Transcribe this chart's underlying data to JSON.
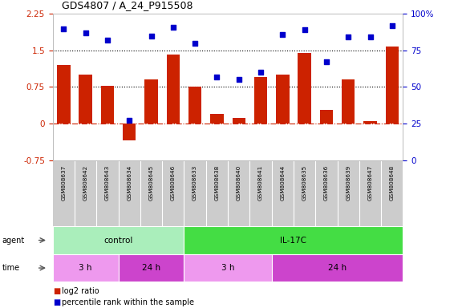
{
  "title": "GDS4807 / A_24_P915508",
  "samples": [
    "GSM808637",
    "GSM808642",
    "GSM808643",
    "GSM808634",
    "GSM808645",
    "GSM808646",
    "GSM808633",
    "GSM808638",
    "GSM808640",
    "GSM808641",
    "GSM808644",
    "GSM808635",
    "GSM808636",
    "GSM808639",
    "GSM808647",
    "GSM808648"
  ],
  "log2_ratio": [
    1.2,
    1.0,
    0.78,
    -0.35,
    0.9,
    1.42,
    0.75,
    0.2,
    0.12,
    0.95,
    1.0,
    1.45,
    0.28,
    0.9,
    0.05,
    1.58
  ],
  "percentile": [
    90,
    87,
    82,
    27,
    85,
    91,
    80,
    57,
    55,
    60,
    86,
    89,
    67,
    84,
    84,
    92
  ],
  "bar_color": "#cc2200",
  "dot_color": "#0000cc",
  "ylim_left": [
    -0.75,
    2.25
  ],
  "ylim_right": [
    0,
    100
  ],
  "hline_values": [
    0.0,
    0.75,
    1.5
  ],
  "hline_styles": [
    "-.",
    ":",
    ":"
  ],
  "hline_colors": [
    "#cc2200",
    "black",
    "black"
  ],
  "agent_groups": [
    {
      "label": "control",
      "start": 0,
      "end": 6,
      "color": "#aaeebb"
    },
    {
      "label": "IL-17C",
      "start": 6,
      "end": 16,
      "color": "#44dd44"
    }
  ],
  "time_groups": [
    {
      "label": "3 h",
      "start": 0,
      "end": 3,
      "color": "#ee99ee"
    },
    {
      "label": "24 h",
      "start": 3,
      "end": 6,
      "color": "#cc44cc"
    },
    {
      "label": "3 h",
      "start": 6,
      "end": 10,
      "color": "#ee99ee"
    },
    {
      "label": "24 h",
      "start": 10,
      "end": 16,
      "color": "#cc44cc"
    }
  ],
  "right_yticks": [
    0,
    25,
    50,
    75,
    100
  ],
  "right_yticklabels": [
    "0",
    "25",
    "50",
    "75",
    "100%"
  ],
  "left_yticks": [
    -0.75,
    0,
    0.75,
    1.5,
    2.25
  ],
  "left_yticklabels": [
    "-0.75",
    "0",
    "0.75",
    "1.5",
    "2.25"
  ],
  "legend_items": [
    {
      "color": "#cc2200",
      "label": "log2 ratio"
    },
    {
      "color": "#0000cc",
      "label": "percentile rank within the sample"
    }
  ],
  "background_color": "#ffffff",
  "plot_bg_color": "#ffffff",
  "n_samples": 16
}
